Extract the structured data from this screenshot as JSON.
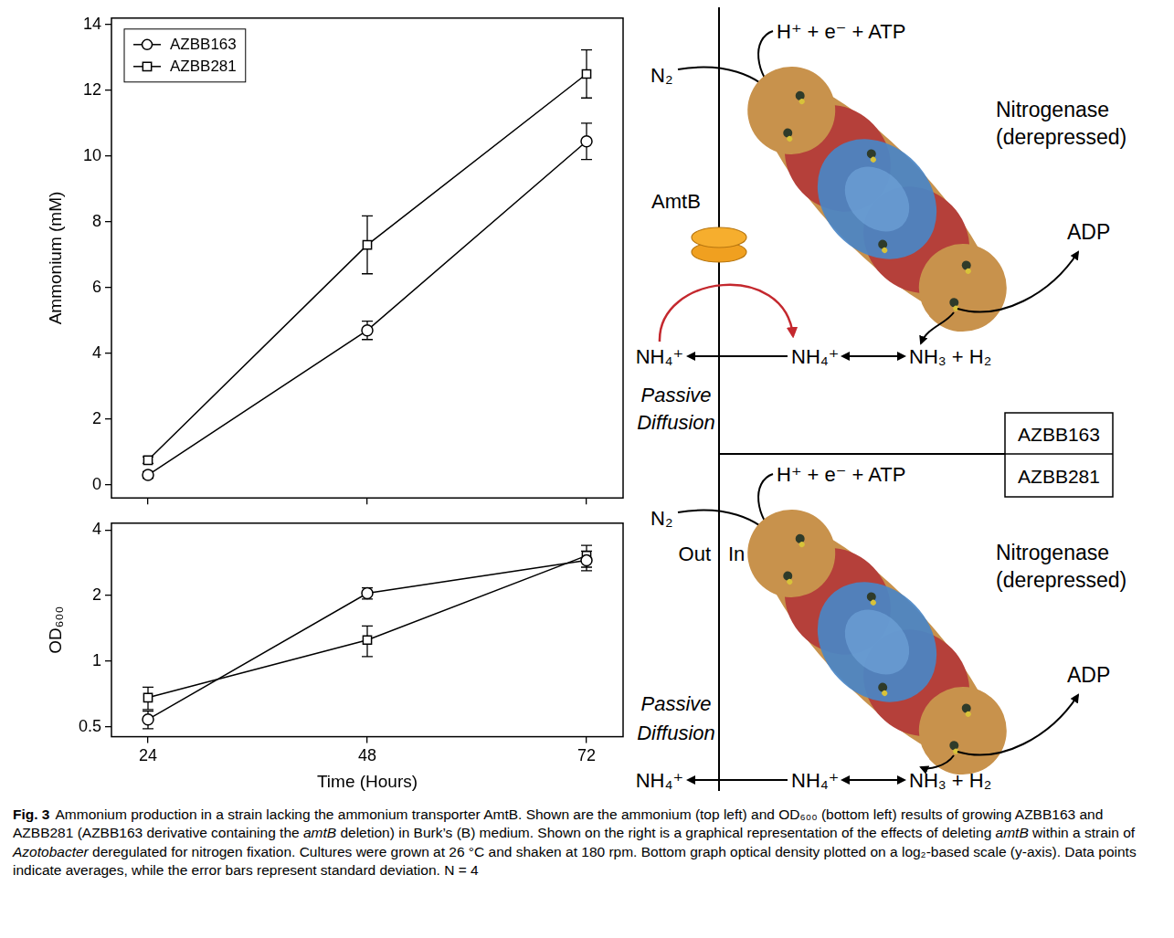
{
  "chart_data": [
    {
      "type": "line",
      "y_label": "Ammonium (mM)",
      "x": [
        24,
        48,
        72
      ],
      "xlim": [
        20,
        76
      ],
      "xticks": [
        24,
        48,
        72
      ],
      "ylim": [
        -0.4,
        14.2
      ],
      "yticks": [
        0,
        2,
        4,
        6,
        8,
        10,
        12,
        14
      ],
      "grid": false,
      "legend": "upper left",
      "tick_labels": "y",
      "series": [
        {
          "name": "AZBB163",
          "color": "#000000",
          "marker": "circle",
          "line_style": "solid",
          "values": [
            0.3,
            4.7,
            10.45
          ],
          "errors": [
            0.1,
            0.28,
            0.55
          ]
        },
        {
          "name": "AZBB281",
          "color": "#000000",
          "marker": "square",
          "line_style": "solid",
          "values": [
            0.75,
            7.3,
            12.5
          ],
          "errors": [
            0.1,
            0.88,
            0.73
          ]
        }
      ]
    },
    {
      "type": "line",
      "x_label": "Time (Hours)",
      "y_label": "OD₆₀₀",
      "x": [
        24,
        48,
        72
      ],
      "xlim": [
        20,
        76
      ],
      "xticks": [
        24,
        48,
        72
      ],
      "log": "y",
      "ylim": [
        0.45,
        4.3
      ],
      "yticks": [
        0.5,
        1,
        2,
        4
      ],
      "grid": false,
      "series": [
        {
          "name": "AZBB163",
          "color": "#000000",
          "marker": "circle",
          "line_style": "solid",
          "values": [
            0.54,
            2.05,
            2.9
          ],
          "errors": [
            0.05,
            0.12,
            0.3
          ]
        },
        {
          "name": "AZBB281",
          "color": "#000000",
          "marker": "square",
          "line_style": "solid",
          "values": [
            0.68,
            1.25,
            3.05
          ],
          "errors": [
            0.08,
            0.2,
            0.35
          ]
        }
      ]
    }
  ],
  "diagram": {
    "out_label": "Out",
    "in_label": "In",
    "panels": [
      {
        "strain": "AZBB163",
        "substrate": "N₂",
        "inputs": "H⁺ + e⁻ + ATP",
        "enzyme": [
          "Nitrogenase",
          "(derepressed)"
        ],
        "byproduct": "ADP",
        "transporter": "AmtB",
        "outside": "NH₄⁺",
        "inside": "NH₄⁺",
        "product": "NH₃ + H₂",
        "diffusion": [
          "Passive",
          "Diffusion"
        ]
      },
      {
        "strain": "AZBB281",
        "substrate": "N₂",
        "inputs": "H⁺ + e⁻ + ATP",
        "enzyme": [
          "Nitrogenase",
          "(derepressed)"
        ],
        "byproduct": "ADP",
        "outside": "NH₄⁺",
        "inside": "NH₄⁺",
        "product": "NH₃ + H₂",
        "diffusion": [
          "Passive",
          "Diffusion"
        ]
      }
    ]
  },
  "caption": {
    "label": "Fig. 3",
    "parts": [
      {
        "text": "Ammonium production in a strain lacking the ammonium transporter AmtB. Shown are the ammonium (top left) and OD₆₀₀ (bottom left) results of growing AZBB163 and AZBB281 (AZBB163 derivative containing the "
      },
      {
        "text": "amtB",
        "italic": true
      },
      {
        "text": " deletion) in Burk’s (B) medium. Shown on the right is a graphical representation of the effects of deleting "
      },
      {
        "text": "amtB",
        "italic": true
      },
      {
        "text": " within a strain of "
      },
      {
        "text": "Azotobacter",
        "italic": true
      },
      {
        "text": " deregulated for nitrogen fixation. Cultures were grown at 26 °C and shaken at 180 rpm. Bottom graph optical density plotted on a log₂-based scale (y-axis). Data points indicate averages, while the error bars represent standard deviation. N = 4"
      }
    ]
  }
}
